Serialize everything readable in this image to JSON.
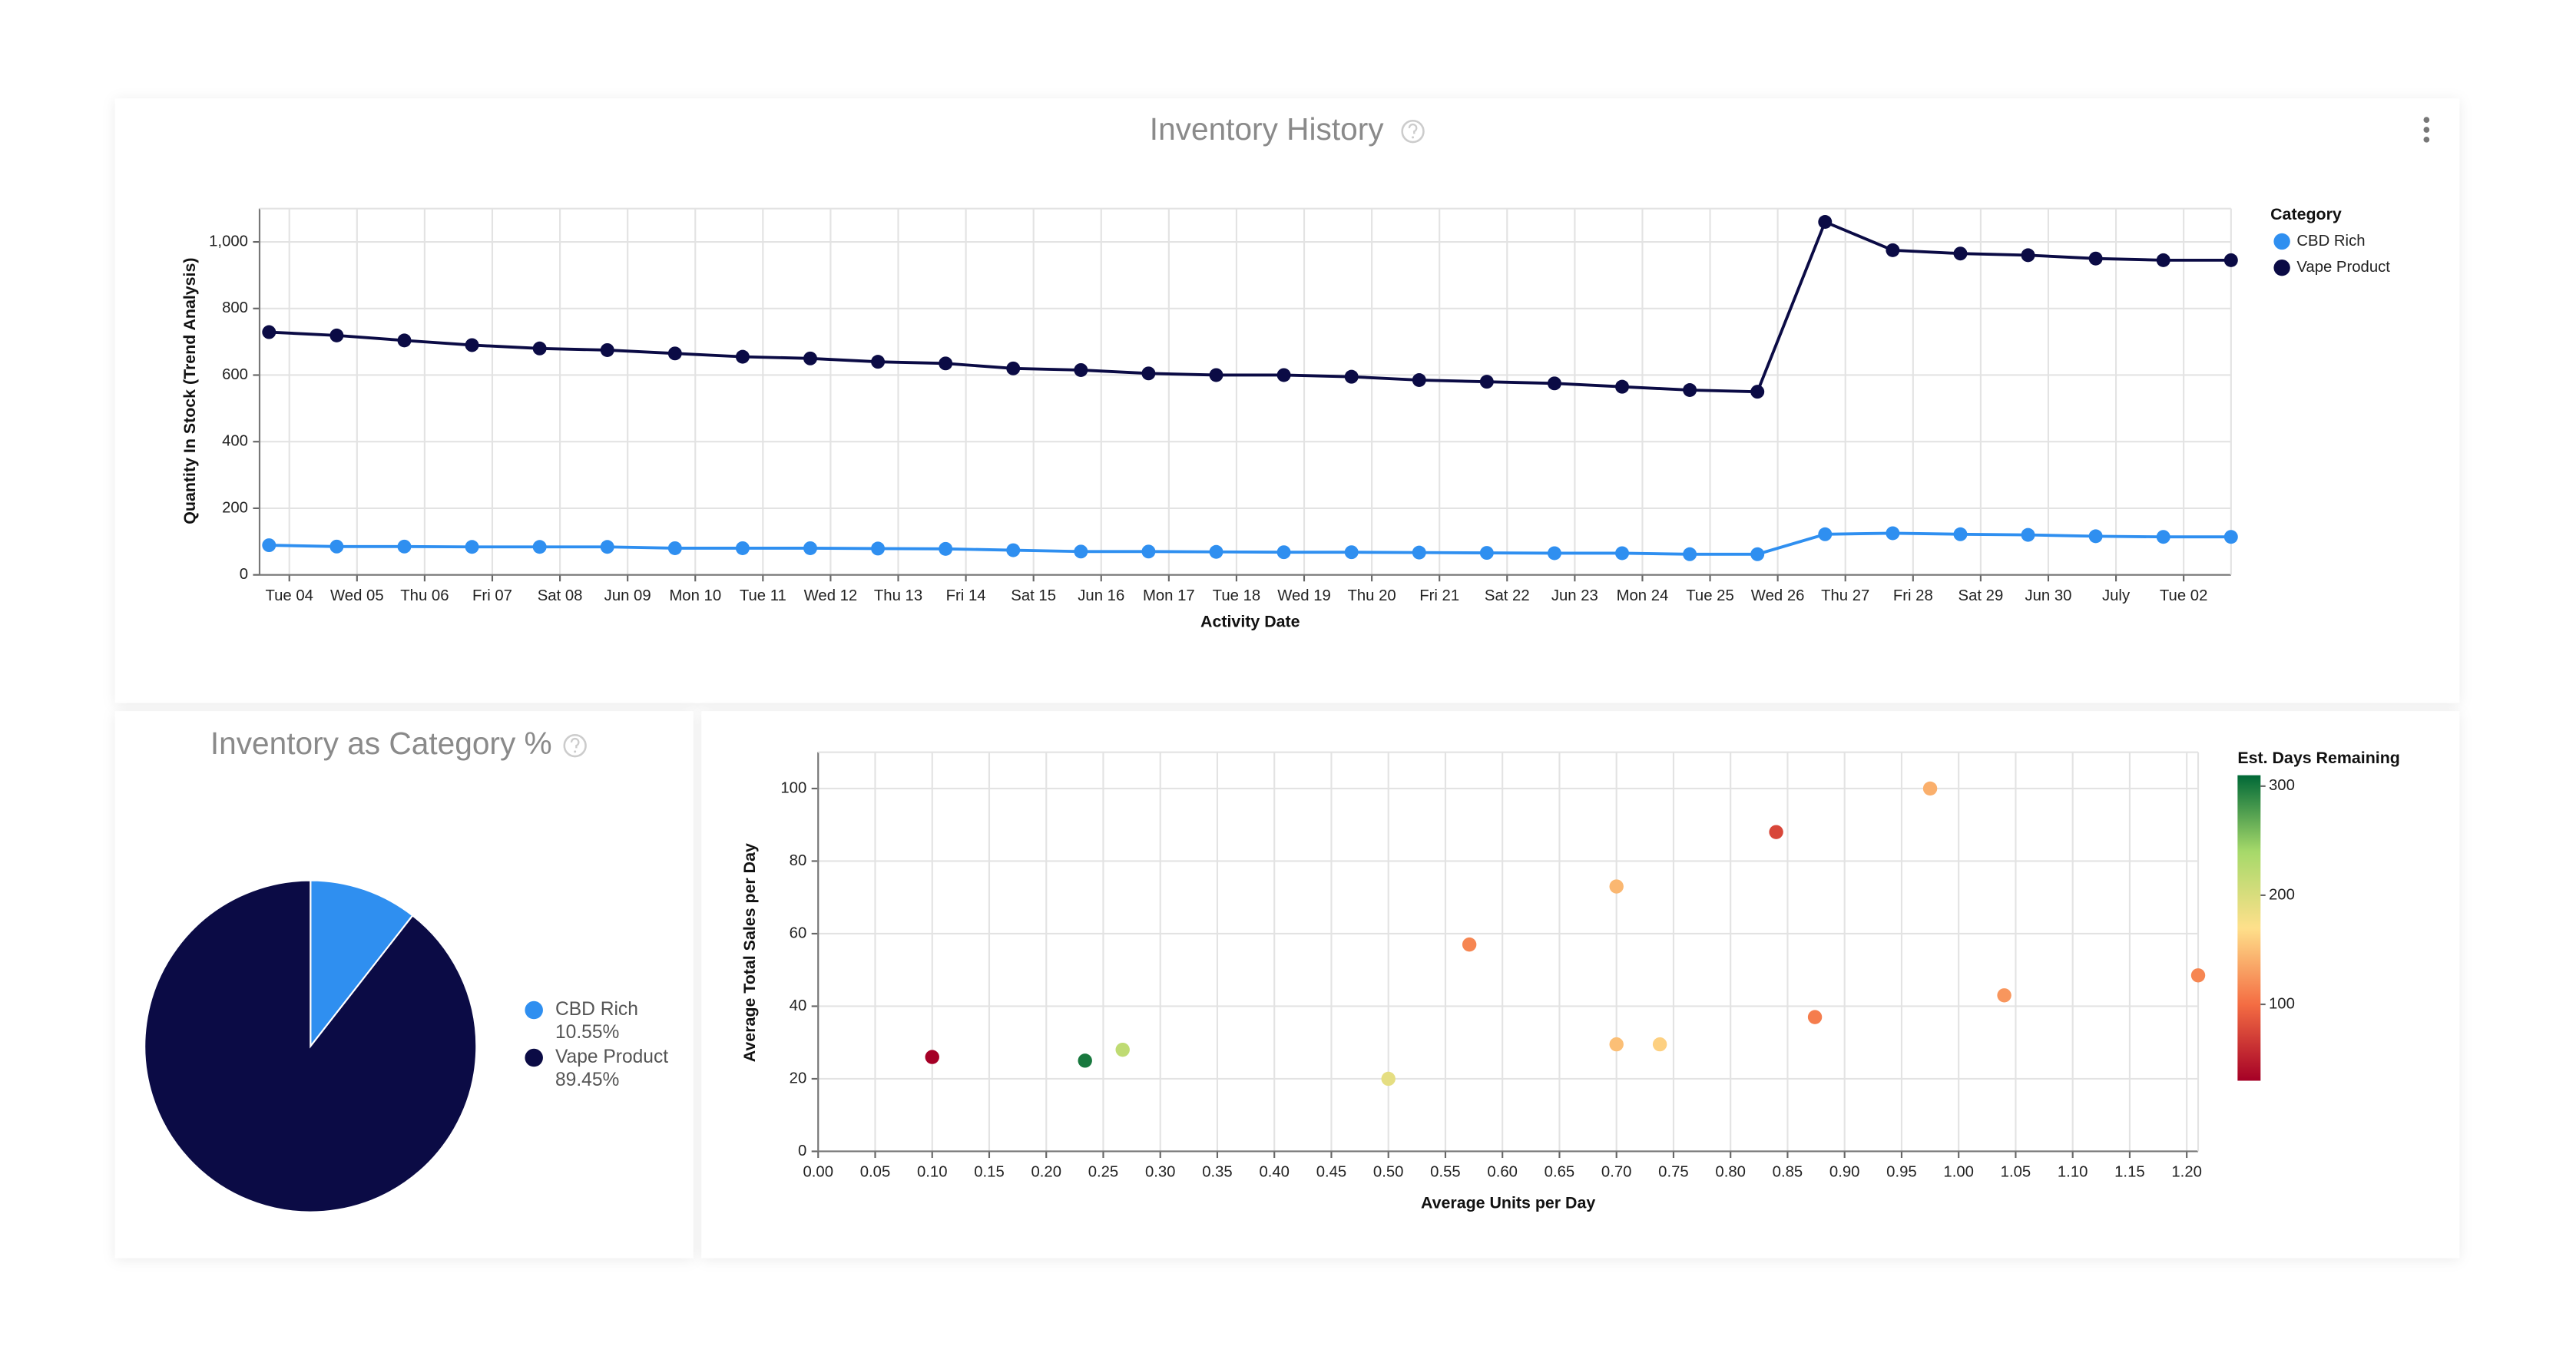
{
  "chart_data": [
    {
      "type": "line",
      "title": "Inventory History",
      "xlabel": "Activity Date",
      "ylabel": "Quantity In Stock (Trend Analysis)",
      "legend_title": "Category",
      "x": [
        3.7,
        4.7,
        5.7,
        6.7,
        7.7,
        8.7,
        9.7,
        10.7,
        11.7,
        12.7,
        13.7,
        14.7,
        15.7,
        16.7,
        17.7,
        18.7,
        19.7,
        20.7,
        21.7,
        22.7,
        23.7,
        24.7,
        25.7,
        26.7,
        27.7,
        28.7,
        29.7,
        30.7,
        31.7,
        32.7
      ],
      "xlim": [
        3.56,
        32.7
      ],
      "xticks": [
        {
          "value": 4,
          "label": "Tue 04"
        },
        {
          "value": 5,
          "label": "Wed 05"
        },
        {
          "value": 6,
          "label": "Thu 06"
        },
        {
          "value": 7,
          "label": "Fri 07"
        },
        {
          "value": 8,
          "label": "Sat 08"
        },
        {
          "value": 9,
          "label": "Jun 09"
        },
        {
          "value": 10,
          "label": "Mon 10"
        },
        {
          "value": 11,
          "label": "Tue 11"
        },
        {
          "value": 12,
          "label": "Wed 12"
        },
        {
          "value": 13,
          "label": "Thu 13"
        },
        {
          "value": 14,
          "label": "Fri 14"
        },
        {
          "value": 15,
          "label": "Sat 15"
        },
        {
          "value": 16,
          "label": "Jun 16"
        },
        {
          "value": 17,
          "label": "Mon 17"
        },
        {
          "value": 18,
          "label": "Tue 18"
        },
        {
          "value": 19,
          "label": "Wed 19"
        },
        {
          "value": 20,
          "label": "Thu 20"
        },
        {
          "value": 21,
          "label": "Fri 21"
        },
        {
          "value": 22,
          "label": "Sat 22"
        },
        {
          "value": 23,
          "label": "Jun 23"
        },
        {
          "value": 24,
          "label": "Mon 24"
        },
        {
          "value": 25,
          "label": "Tue 25"
        },
        {
          "value": 26,
          "label": "Wed 26"
        },
        {
          "value": 27,
          "label": "Thu 27"
        },
        {
          "value": 28,
          "label": "Fri 28"
        },
        {
          "value": 29,
          "label": "Sat 29"
        },
        {
          "value": 30,
          "label": "Jun 30"
        },
        {
          "value": 31,
          "label": "July"
        },
        {
          "value": 32,
          "label": "Tue 02"
        }
      ],
      "ylim": [
        0,
        1100
      ],
      "yticks": [
        0,
        200,
        400,
        600,
        800,
        {
          "value": 1000,
          "label": "1,000"
        }
      ],
      "grid": true,
      "series": [
        {
          "name": "CBD Rich",
          "color": "#2f8ff0",
          "values": [
            89,
            85,
            85,
            84,
            84,
            84,
            80,
            80,
            80,
            79,
            78,
            74,
            70,
            70,
            69,
            68,
            68,
            67,
            66,
            65,
            65,
            62,
            62,
            122,
            125,
            122,
            120,
            116,
            114,
            114
          ]
        },
        {
          "name": "Vape Product",
          "color": "#0b0b45",
          "values": [
            729,
            719,
            704,
            690,
            680,
            675,
            665,
            655,
            650,
            640,
            635,
            620,
            615,
            605,
            600,
            600,
            595,
            585,
            580,
            575,
            565,
            555,
            550,
            1060,
            975,
            965,
            960,
            950,
            945,
            945
          ]
        }
      ]
    },
    {
      "type": "pie",
      "title": "Inventory as Category %",
      "categories": [
        "CBD Rich",
        "Vape Product"
      ],
      "values": [
        10.55,
        89.45
      ],
      "value_labels": [
        "10.55%",
        "89.45%"
      ],
      "colors": [
        "#2f8ff0",
        "#0b0b45"
      ]
    },
    {
      "type": "scatter",
      "xlabel": "Average Units per Day",
      "ylabel": "Average Total Sales per Day",
      "color_title": "Est. Days Remaining",
      "x": [
        0.1,
        0.234,
        0.267,
        0.5,
        0.571,
        0.7,
        0.7,
        0.738,
        0.84,
        0.874,
        0.975,
        1.04,
        1.21
      ],
      "y": [
        26,
        25,
        28,
        20,
        57,
        73,
        29.5,
        29.5,
        88,
        37,
        100,
        43,
        48.5
      ],
      "days": [
        30,
        300,
        220,
        190,
        115,
        145,
        150,
        160,
        75,
        110,
        140,
        125,
        115
      ],
      "xlim": [
        0,
        1.21
      ],
      "xticks": [
        {
          "value": 0,
          "label": "0.00"
        },
        0.05,
        {
          "value": 0.1,
          "label": "0.10"
        },
        0.15,
        {
          "value": 0.2,
          "label": "0.20"
        },
        0.25,
        {
          "value": 0.3,
          "label": "0.30"
        },
        0.35,
        {
          "value": 0.4,
          "label": "0.40"
        },
        0.45,
        {
          "value": 0.5,
          "label": "0.50"
        },
        0.55,
        {
          "value": 0.6,
          "label": "0.60"
        },
        0.65,
        {
          "value": 0.7,
          "label": "0.70"
        },
        0.75,
        {
          "value": 0.8,
          "label": "0.80"
        },
        0.85,
        {
          "value": 0.9,
          "label": "0.90"
        },
        0.95,
        {
          "value": 1,
          "label": "1.00"
        },
        1.05,
        {
          "value": 1.1,
          "label": "1.10"
        },
        1.15,
        {
          "value": 1.2,
          "label": "1.20"
        }
      ],
      "ylim": [
        0,
        110
      ],
      "yticks": [
        0,
        20,
        40,
        60,
        80,
        100
      ],
      "grid": true,
      "color_domain": [
        30,
        310
      ],
      "color_ticks": [
        100,
        200,
        300
      ],
      "color_stops": [
        "#a50026",
        "#f46d43",
        "#fee08b",
        "#a6d96a",
        "#006837"
      ]
    }
  ]
}
